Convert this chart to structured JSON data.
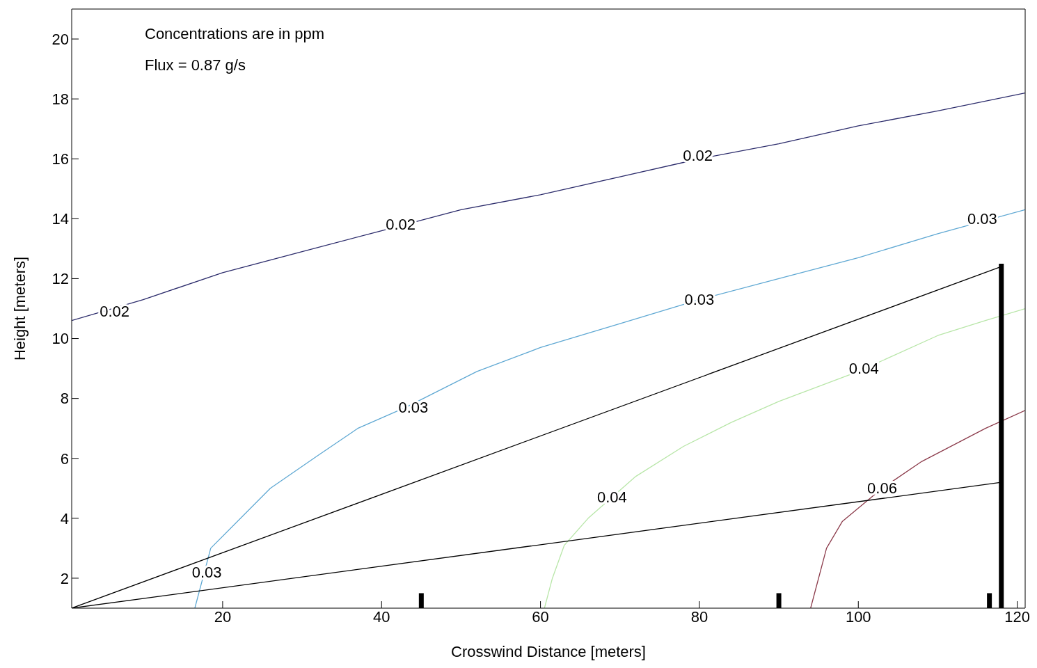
{
  "chart_data": {
    "type": "line",
    "xlabel": "Crosswind Distance [meters]",
    "ylabel": "Height [meters]",
    "xlim": [
      1,
      121
    ],
    "ylim": [
      1,
      21
    ],
    "xticks": [
      20,
      40,
      60,
      80,
      100,
      120
    ],
    "yticks": [
      2,
      4,
      6,
      8,
      10,
      12,
      14,
      16,
      18,
      20
    ],
    "marker": "none",
    "line_style": "solid",
    "series": [
      {
        "color": "#2b2b6b",
        "x": [
          1,
          10,
          20,
          30,
          40,
          50,
          60,
          70,
          80,
          90,
          100,
          110,
          121
        ],
        "values": [
          10.6,
          11.3,
          12.2,
          12.9,
          13.6,
          14.3,
          14.8,
          15.4,
          16.0,
          16.5,
          17.1,
          17.6,
          18.2
        ]
      },
      {
        "color": "#5fa8d3",
        "x": [
          16.5,
          18.5,
          26,
          32,
          37,
          43,
          52,
          60,
          70,
          80,
          90,
          100,
          110,
          121
        ],
        "values": [
          1,
          3.0,
          5.0,
          6.1,
          7.0,
          7.7,
          8.9,
          9.7,
          10.5,
          11.3,
          12.0,
          12.7,
          13.5,
          14.3
        ]
      },
      {
        "color": "#b8e6a8",
        "x": [
          60.5,
          61.5,
          63,
          66,
          72,
          78,
          84,
          90,
          100,
          110,
          116,
          121
        ],
        "values": [
          1,
          2,
          3.1,
          4,
          5.4,
          6.4,
          7.2,
          7.9,
          8.9,
          10.1,
          10.6,
          11
        ]
      },
      {
        "color": "#8b3a4a",
        "x": [
          94,
          96,
          98,
          103,
          108,
          116,
          121
        ],
        "values": [
          1,
          3,
          3.9,
          5.0,
          5.9,
          7,
          7.6
        ]
      },
      {
        "color": "#000000",
        "x": [
          1,
          118
        ],
        "values": [
          1,
          12.4
        ]
      },
      {
        "color": "#000000",
        "x": [
          1,
          118
        ],
        "values": [
          1,
          5.2
        ]
      },
      {
        "color": "#000000",
        "x": [
          118,
          118
        ],
        "values": [
          1,
          12.5
        ]
      },
      {
        "color": "#000000",
        "x": [
          45,
          45
        ],
        "values": [
          1,
          1.5
        ]
      },
      {
        "color": "#000000",
        "x": [
          90,
          90
        ],
        "values": [
          1,
          1.5
        ]
      },
      {
        "color": "#000000",
        "x": [
          116.5,
          116.5
        ],
        "values": [
          1,
          1.5
        ]
      }
    ],
    "annotations": [
      "Concentrations are in ppm",
      "Flux = 0.87 g/s",
      {
        "text": "0.02",
        "x": 6.4,
        "y": 10.9
      },
      {
        "text": "0.02",
        "x": 42.4,
        "y": 13.8
      },
      {
        "text": "0.02",
        "x": 79.8,
        "y": 16.1
      },
      {
        "text": "0.03",
        "x": 115.6,
        "y": 14
      },
      {
        "text": "0.03",
        "x": 80,
        "y": 11.3
      },
      {
        "text": "0.03",
        "x": 44,
        "y": 7.7
      },
      {
        "text": "0.03",
        "x": 18,
        "y": 2.2
      },
      {
        "text": "0.04",
        "x": 100.7,
        "y": 9
      },
      {
        "text": "0.04",
        "x": 69,
        "y": 4.7
      },
      {
        "text": "0.06",
        "x": 103,
        "y": 5.0
      }
    ]
  }
}
